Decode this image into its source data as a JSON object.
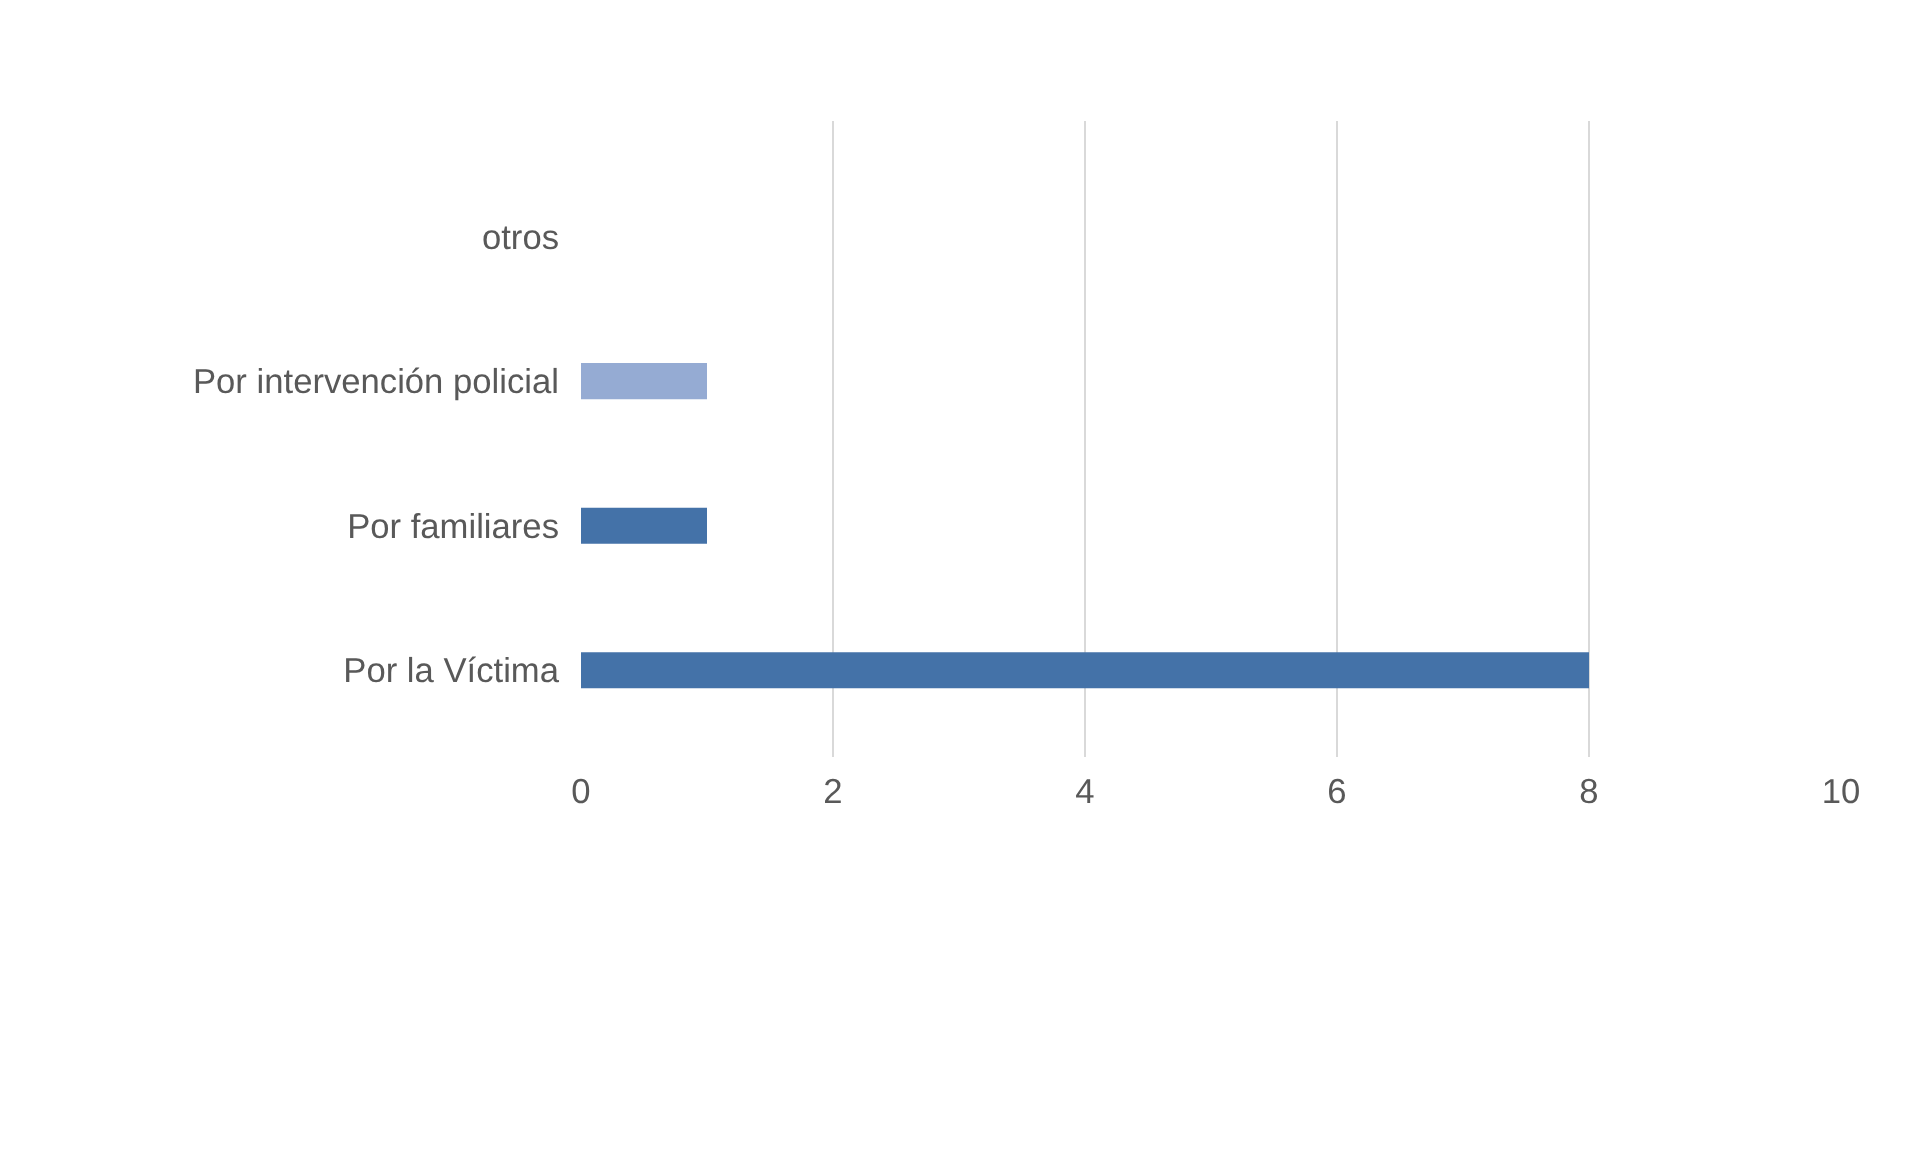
{
  "chart_data": {
    "type": "bar",
    "orientation": "horizontal",
    "categories": [
      "otros",
      "Por intervención policial",
      "Por familiares",
      "Por la Víctima"
    ],
    "values": [
      0,
      1,
      1,
      8
    ],
    "colors": [
      "#4472a8",
      "#95abd3",
      "#4472a8",
      "#4472a8"
    ],
    "xlim": [
      0,
      10
    ],
    "xticks": [
      0,
      2,
      4,
      6,
      8,
      10
    ],
    "grid": "x"
  }
}
